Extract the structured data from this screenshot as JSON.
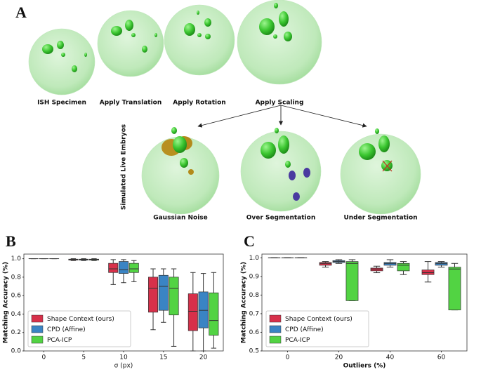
{
  "panel_a": {
    "label": "A",
    "stages": [
      "ISH Specimen",
      "Apply Translation",
      "Apply Rotation",
      "Apply Scaling"
    ],
    "side_label": "Simulated Live Embryos",
    "outcomes": [
      "Gaussian Noise",
      "Over Segmentation",
      "Under Segmentation"
    ]
  },
  "chart_data": [
    {
      "type": "box",
      "panel_label": "B",
      "xlabel": "σ (px)",
      "ylabel": "Matching Accuracy (%)",
      "categories": [
        0,
        5,
        10,
        15,
        20
      ],
      "ylim": [
        0,
        1.05
      ],
      "yticks": [
        {
          "value": 0,
          "label": "0.0"
        },
        0.2,
        0.4,
        0.6,
        0.8,
        {
          "value": 1,
          "label": "1.0"
        }
      ],
      "legend": "lower left",
      "series": [
        {
          "name": "Shape Context (ours)",
          "color": "#d7304a",
          "stats": [
            {
              "low": 1,
              "q1": 1,
              "median": 1,
              "q3": 1,
              "high": 1
            },
            {
              "low": 0.98,
              "q1": 0.985,
              "median": 0.99,
              "q3": 0.995,
              "high": 1
            },
            {
              "low": 0.72,
              "q1": 0.85,
              "median": 0.89,
              "q3": 0.95,
              "high": 0.99
            },
            {
              "low": 0.23,
              "q1": 0.42,
              "median": 0.68,
              "q3": 0.8,
              "high": 0.89
            },
            {
              "low": 0,
              "q1": 0.22,
              "median": 0.43,
              "q3": 0.62,
              "high": 0.85
            }
          ]
        },
        {
          "name": "CPD (Affine)",
          "color": "#3a84c4",
          "stats": [
            {
              "low": 1,
              "q1": 1,
              "median": 1,
              "q3": 1,
              "high": 1
            },
            {
              "low": 0.98,
              "q1": 0.985,
              "median": 0.99,
              "q3": 0.995,
              "high": 1
            },
            {
              "low": 0.74,
              "q1": 0.84,
              "median": 0.88,
              "q3": 0.97,
              "high": 0.99
            },
            {
              "low": 0.31,
              "q1": 0.44,
              "median": 0.7,
              "q3": 0.82,
              "high": 0.89
            },
            {
              "low": 0,
              "q1": 0.25,
              "median": 0.44,
              "q3": 0.64,
              "high": 0.84
            }
          ]
        },
        {
          "name": "PCA-ICP",
          "color": "#52d343",
          "stats": [
            {
              "low": 1,
              "q1": 1,
              "median": 1,
              "q3": 1,
              "high": 1
            },
            {
              "low": 0.98,
              "q1": 0.985,
              "median": 0.99,
              "q3": 0.995,
              "high": 1
            },
            {
              "low": 0.75,
              "q1": 0.85,
              "median": 0.89,
              "q3": 0.95,
              "high": 0.98
            },
            {
              "low": 0.05,
              "q1": 0.39,
              "median": 0.68,
              "q3": 0.8,
              "high": 0.89
            },
            {
              "low": 0.03,
              "q1": 0.17,
              "median": 0.33,
              "q3": 0.63,
              "high": 0.85
            }
          ]
        }
      ]
    },
    {
      "type": "box",
      "panel_label": "C",
      "xlabel": "Outliers (%)",
      "ylabel": "Matching Accuracy (%)",
      "categories": [
        0,
        20,
        40,
        60
      ],
      "ylim": [
        0.5,
        1.02
      ],
      "yticks": [
        0.5,
        0.6,
        0.7,
        0.8,
        0.9,
        {
          "value": 1,
          "label": "1.0"
        }
      ],
      "legend": "lower left",
      "series": [
        {
          "name": "Shape Context (ours)",
          "color": "#d7304a",
          "stats": [
            {
              "low": 1,
              "q1": 1,
              "median": 1,
              "q3": 1,
              "high": 1
            },
            {
              "low": 0.95,
              "q1": 0.96,
              "median": 0.97,
              "q3": 0.975,
              "high": 0.98
            },
            {
              "low": 0.92,
              "q1": 0.93,
              "median": 0.94,
              "q3": 0.945,
              "high": 0.955
            },
            {
              "low": 0.87,
              "q1": 0.91,
              "median": 0.92,
              "q3": 0.935,
              "high": 0.98
            }
          ]
        },
        {
          "name": "CPD (Affine)",
          "color": "#3a84c4",
          "stats": [
            {
              "low": 1,
              "q1": 1,
              "median": 1,
              "q3": 1,
              "high": 1
            },
            {
              "low": 0.97,
              "q1": 0.975,
              "median": 0.98,
              "q3": 0.985,
              "high": 0.99
            },
            {
              "low": 0.95,
              "q1": 0.96,
              "median": 0.97,
              "q3": 0.975,
              "high": 0.99
            },
            {
              "low": 0.95,
              "q1": 0.96,
              "median": 0.97,
              "q3": 0.975,
              "high": 0.98
            }
          ]
        },
        {
          "name": "PCA-ICP",
          "color": "#52d343",
          "stats": [
            {
              "low": 1,
              "q1": 1,
              "median": 1,
              "q3": 1,
              "high": 1
            },
            {
              "low": 0.77,
              "q1": 0.77,
              "median": 0.97,
              "q3": 0.98,
              "high": 0.99
            },
            {
              "low": 0.91,
              "q1": 0.93,
              "median": 0.96,
              "q3": 0.97,
              "high": 0.98
            },
            {
              "low": 0.72,
              "q1": 0.72,
              "median": 0.94,
              "q3": 0.95,
              "high": 0.97
            }
          ]
        }
      ]
    }
  ]
}
